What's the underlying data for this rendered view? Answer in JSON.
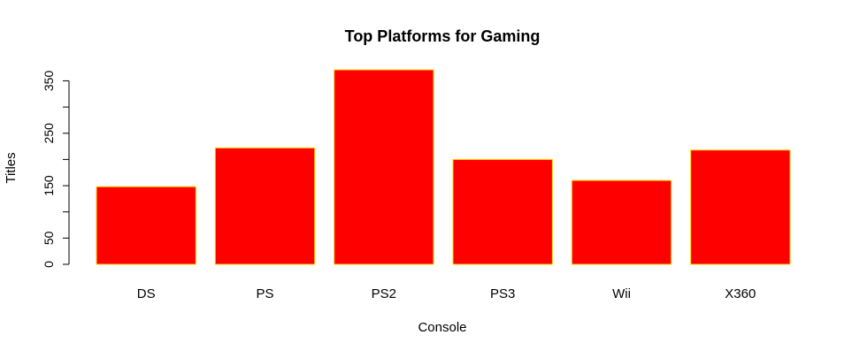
{
  "chart_data": {
    "type": "bar",
    "title": "Top Platforms for Gaming",
    "xlabel": "Console",
    "ylabel": "Titles",
    "categories": [
      "DS",
      "PS",
      "PS2",
      "PS3",
      "Wii",
      "X360"
    ],
    "values": [
      148,
      222,
      371,
      200,
      160,
      218
    ],
    "ylim": [
      0,
      371
    ],
    "yticks": [
      0,
      50,
      150,
      250,
      350
    ],
    "yticks_unlabeled": [
      100,
      200,
      300
    ],
    "bar_fill": "#ff0000",
    "bar_border": "#ffd400",
    "grid": false,
    "legend": false
  }
}
